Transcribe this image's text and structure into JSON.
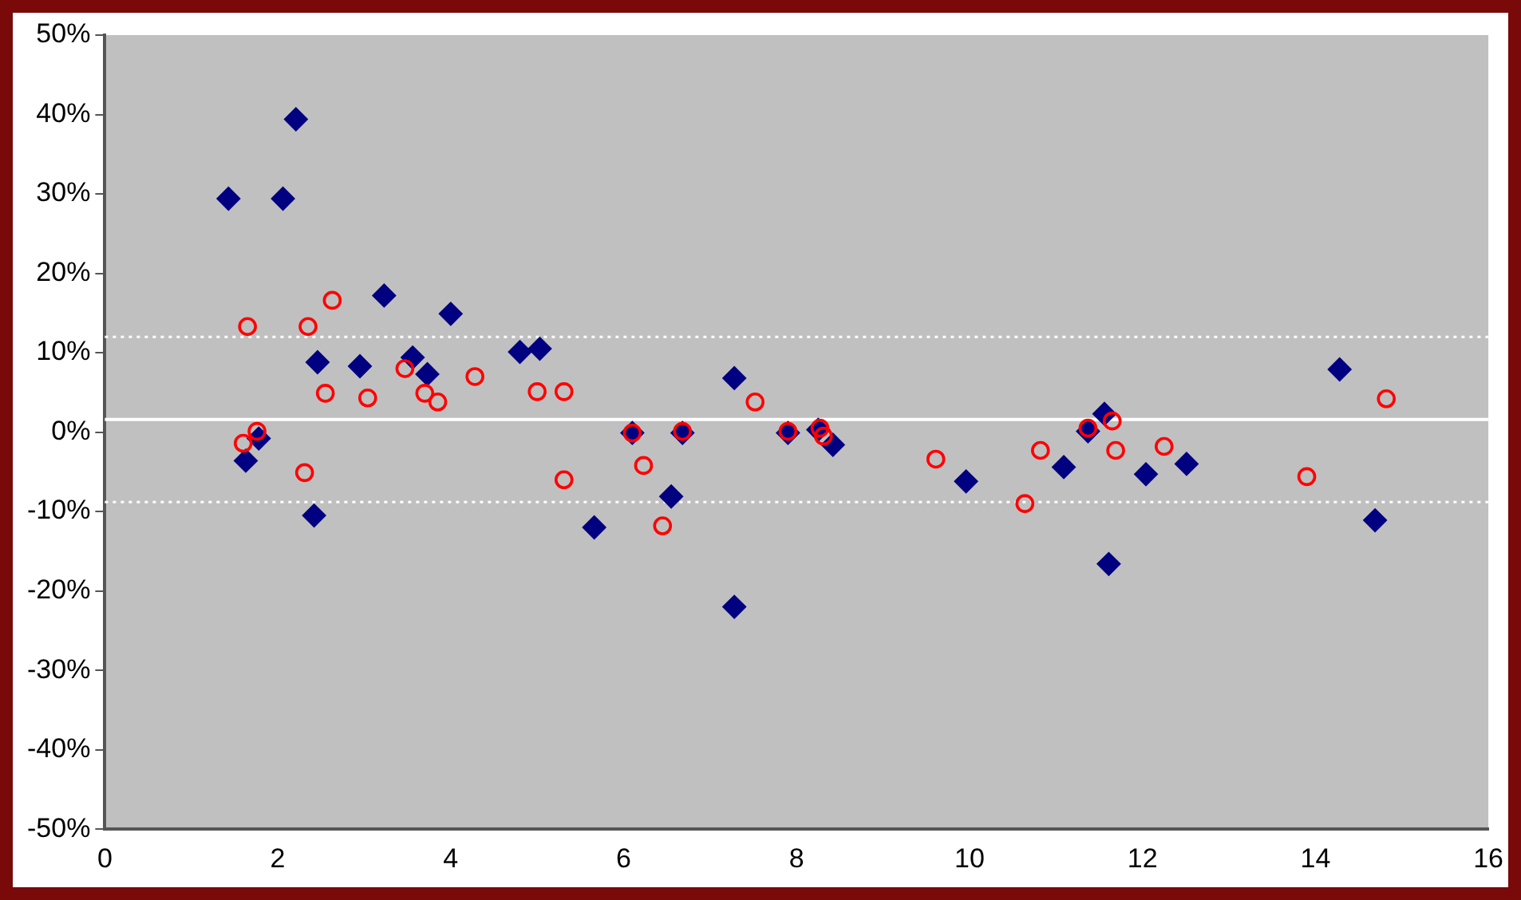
{
  "chart_data": {
    "type": "scatter",
    "series": [
      {
        "color": "#000080",
        "marker": "diamond",
        "x": [
          1.43,
          1.63,
          1.78,
          2.06,
          2.21,
          2.46,
          2.42,
          2.95,
          3.23,
          3.56,
          3.73,
          4.0,
          4.8,
          5.03,
          5.66,
          6.1,
          6.68,
          6.55,
          7.28,
          7.28,
          7.9,
          8.25,
          8.42,
          9.96,
          11.09,
          11.37,
          11.56,
          11.61,
          12.04,
          12.51,
          14.28,
          14.69
        ],
        "values": [
          29.4,
          -3.6,
          -0.8,
          29.4,
          39.4,
          8.8,
          -10.5,
          8.3,
          17.2,
          9.4,
          7.3,
          14.9,
          10.1,
          10.5,
          -12.0,
          -0.1,
          -0.1,
          -8.1,
          6.8,
          -22.0,
          -0.1,
          0.3,
          -1.6,
          -6.2,
          -4.4,
          0.1,
          2.3,
          -16.6,
          -5.3,
          -4.0,
          7.9,
          -11.1
        ]
      },
      {
        "color": "#ff0000",
        "marker": "circle",
        "x": [
          1.65,
          1.6,
          1.76,
          2.31,
          2.35,
          2.63,
          2.55,
          3.04,
          3.47,
          3.7,
          3.85,
          4.28,
          5.0,
          5.31,
          5.31,
          6.1,
          6.23,
          6.45,
          6.68,
          7.52,
          7.9,
          8.27,
          8.31,
          9.61,
          10.64,
          10.82,
          11.37,
          11.65,
          11.69,
          12.25,
          13.9,
          14.82
        ],
        "values": [
          13.3,
          -1.4,
          0.1,
          -5.1,
          13.3,
          16.6,
          4.9,
          4.3,
          8.0,
          4.9,
          3.8,
          7.0,
          5.1,
          5.1,
          -6.0,
          -0.1,
          -4.2,
          -11.8,
          0.1,
          3.8,
          0.1,
          0.5,
          -0.5,
          -3.4,
          -9.0,
          -2.3,
          0.5,
          1.4,
          -2.3,
          -1.8,
          -5.6,
          4.2
        ]
      }
    ],
    "xlim": [
      0,
      16
    ],
    "xticks": [
      0,
      2,
      4,
      6,
      8,
      10,
      12,
      14,
      16
    ],
    "ylim": [
      -50,
      50
    ],
    "yticks": [
      {
        "value": -50,
        "label": "-50%"
      },
      {
        "value": -40,
        "label": "-40%"
      },
      {
        "value": -30,
        "label": "-30%"
      },
      {
        "value": -20,
        "label": "-20%"
      },
      {
        "value": -10,
        "label": "-10%"
      },
      {
        "value": 0,
        "label": "0%"
      },
      {
        "value": 10,
        "label": "10%"
      },
      {
        "value": 20,
        "label": "20%"
      },
      {
        "value": 30,
        "label": "30%"
      },
      {
        "value": 40,
        "label": "40%"
      },
      {
        "value": 50,
        "label": "50%"
      }
    ],
    "ref_lines": [
      {
        "axis": "y",
        "value": 1.6,
        "color": "#ffffff",
        "line_style": "solid"
      },
      {
        "axis": "y",
        "value": 12,
        "color": "#ffffff",
        "line_style": "dotted"
      },
      {
        "axis": "y",
        "value": -8.8,
        "color": "#ffffff",
        "line_style": "dotted"
      }
    ],
    "grid": false,
    "legend": false
  }
}
